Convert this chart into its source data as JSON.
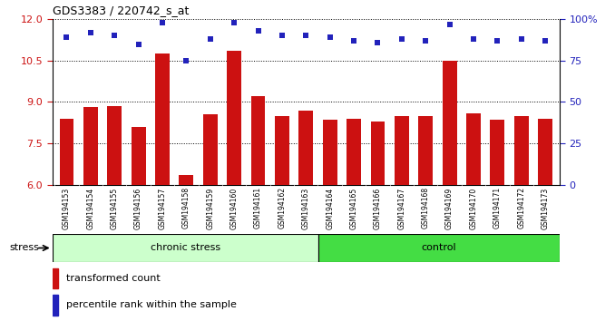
{
  "title": "GDS3383 / 220742_s_at",
  "samples": [
    "GSM194153",
    "GSM194154",
    "GSM194155",
    "GSM194156",
    "GSM194157",
    "GSM194158",
    "GSM194159",
    "GSM194160",
    "GSM194161",
    "GSM194162",
    "GSM194163",
    "GSM194164",
    "GSM194165",
    "GSM194166",
    "GSM194167",
    "GSM194168",
    "GSM194169",
    "GSM194170",
    "GSM194171",
    "GSM194172",
    "GSM194173"
  ],
  "transformed_count": [
    8.4,
    8.8,
    8.85,
    8.1,
    10.75,
    6.35,
    8.55,
    10.85,
    9.2,
    8.5,
    8.7,
    8.35,
    8.4,
    8.3,
    8.5,
    8.5,
    10.5,
    8.6,
    8.35,
    8.5,
    8.4
  ],
  "percentile_rank": [
    89,
    92,
    90,
    85,
    98,
    75,
    88,
    98,
    93,
    90,
    90,
    89,
    87,
    86,
    88,
    87,
    97,
    88,
    87,
    88,
    87
  ],
  "chronic_stress_count": 11,
  "control_count": 10,
  "ylim_left": [
    6,
    12
  ],
  "ylim_right": [
    0,
    100
  ],
  "yticks_left": [
    6,
    7.5,
    9,
    10.5,
    12
  ],
  "yticks_right": [
    0,
    25,
    50,
    75,
    100
  ],
  "bar_color": "#CC1111",
  "dot_color": "#2222BB",
  "chronic_stress_color": "#CCFFCC",
  "control_color": "#44DD44",
  "background_color": "#FFFFFF",
  "xtick_bg_color": "#CCCCCC",
  "legend_bar_label": "transformed count",
  "legend_dot_label": "percentile rank within the sample",
  "stress_label": "stress",
  "chronic_stress_label": "chronic stress",
  "control_label": "control"
}
